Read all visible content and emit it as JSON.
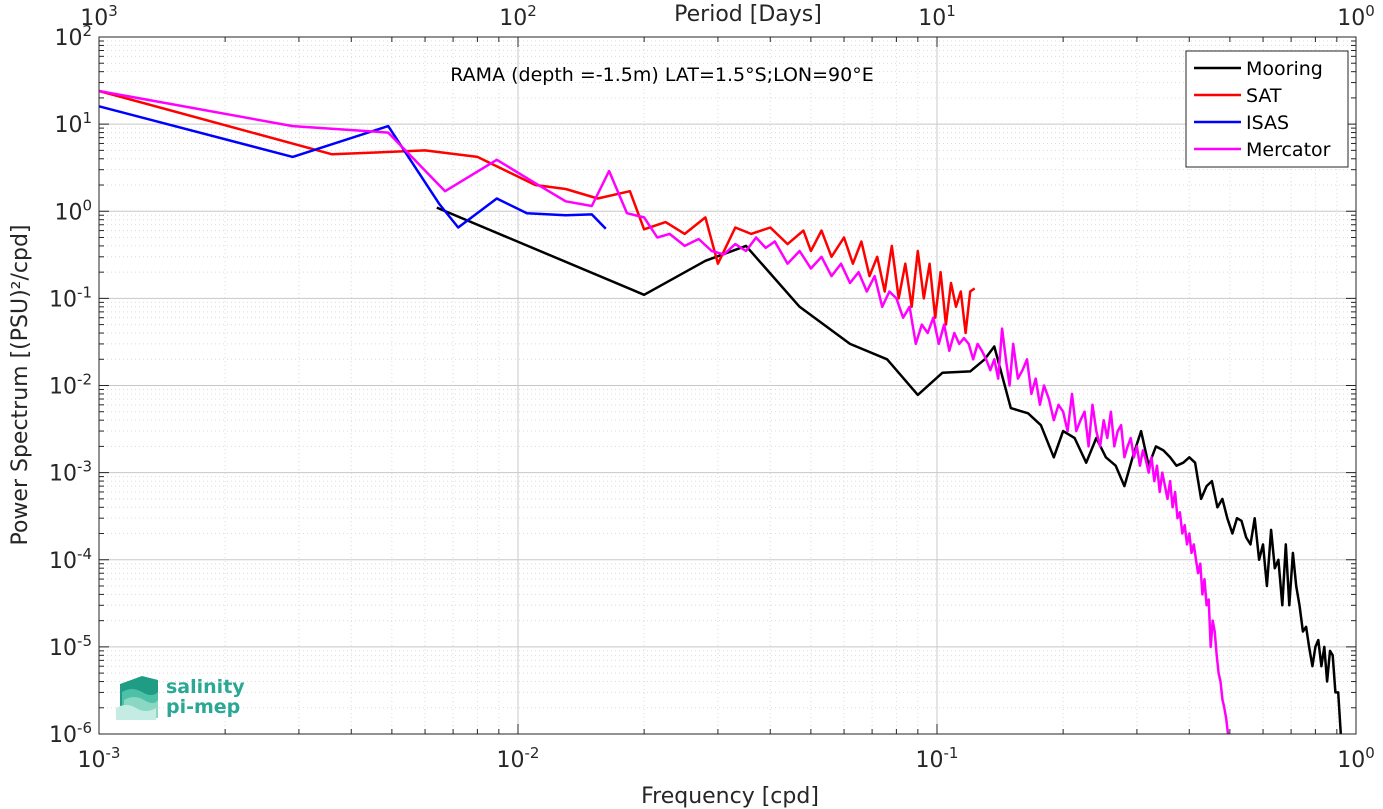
{
  "chart_data": {
    "type": "line",
    "annotation": "RAMA (depth =-1.5m) LAT=1.5°S;LON=90°E",
    "xlabel": "Frequency [cpd]",
    "ylabel": "Power Spectrum [(PSU)²/cpd]",
    "top_xlabel": "Period [Days]",
    "x_scale": "log",
    "y_scale": "log",
    "xlim": [
      0.001,
      1
    ],
    "ylim": [
      1e-06,
      100
    ],
    "grid": true,
    "minor_grid": true,
    "legend_position": "top-right",
    "x_ticks": [
      0.001,
      0.01,
      0.1,
      1
    ],
    "x_tick_labels": [
      {
        "base": "10",
        "exp": "-3"
      },
      {
        "base": "10",
        "exp": "-2"
      },
      {
        "base": "10",
        "exp": "-1"
      },
      {
        "base": "10",
        "exp": "0"
      }
    ],
    "top_ticks": [
      1000,
      100,
      10,
      1
    ],
    "top_tick_labels": [
      {
        "base": "10",
        "exp": "3"
      },
      {
        "base": "10",
        "exp": "2"
      },
      {
        "base": "10",
        "exp": "1"
      },
      {
        "base": "10",
        "exp": "0"
      }
    ],
    "y_ticks": [
      1e-06,
      1e-05,
      0.0001,
      0.001,
      0.01,
      0.1,
      1,
      10,
      100
    ],
    "y_tick_labels": [
      {
        "base": "10",
        "exp": "-6"
      },
      {
        "base": "10",
        "exp": "-5"
      },
      {
        "base": "10",
        "exp": "-4"
      },
      {
        "base": "10",
        "exp": "-3"
      },
      {
        "base": "10",
        "exp": "-2"
      },
      {
        "base": "10",
        "exp": "-1"
      },
      {
        "base": "10",
        "exp": "0"
      },
      {
        "base": "10",
        "exp": "1"
      },
      {
        "base": "10",
        "exp": "2"
      }
    ],
    "series": [
      {
        "name": "Mooring",
        "color": "#000000",
        "x": [
          0.0064,
          0.02,
          0.028,
          0.035,
          0.047,
          0.062,
          0.076,
          0.09,
          0.103,
          0.12,
          0.13,
          0.137,
          0.15,
          0.165,
          0.177,
          0.19,
          0.2,
          0.213,
          0.227,
          0.24,
          0.253,
          0.267,
          0.28,
          0.293,
          0.307,
          0.32,
          0.333,
          0.347,
          0.36,
          0.373,
          0.387,
          0.4,
          0.413,
          0.427,
          0.44,
          0.453,
          0.467,
          0.48,
          0.493,
          0.507,
          0.52,
          0.533,
          0.547,
          0.56,
          0.573,
          0.587,
          0.6,
          0.613,
          0.627,
          0.64,
          0.653,
          0.667,
          0.68,
          0.693,
          0.707,
          0.72,
          0.733,
          0.747,
          0.76,
          0.773,
          0.787,
          0.8,
          0.813,
          0.827,
          0.84,
          0.853,
          0.867,
          0.88,
          0.893,
          0.907,
          0.92
        ],
        "y": [
          1.1,
          0.11,
          0.27,
          0.4,
          0.08,
          0.03,
          0.02,
          0.0078,
          0.014,
          0.0145,
          0.02,
          0.028,
          0.0055,
          0.0048,
          0.0035,
          0.0015,
          0.003,
          0.0025,
          0.0013,
          0.0025,
          0.0015,
          0.0012,
          0.0007,
          0.0015,
          0.003,
          0.0012,
          0.002,
          0.0018,
          0.0015,
          0.0012,
          0.0013,
          0.0015,
          0.0013,
          0.0005,
          0.0007,
          0.0008,
          0.0004,
          0.0005,
          0.0003,
          0.0002,
          0.0003,
          0.00028,
          0.00018,
          0.00015,
          0.0003,
          0.0001,
          0.00015,
          5e-05,
          0.00022,
          8e-05,
          0.0001,
          3e-05,
          0.00015,
          3e-05,
          0.00012,
          5e-05,
          3e-05,
          1.5e-05,
          1.7e-05,
          1e-05,
          6e-06,
          1e-05,
          1.2e-05,
          6e-06,
          1e-05,
          4e-06,
          9e-06,
          8e-06,
          3e-06,
          3e-06,
          1e-06
        ]
      },
      {
        "name": "SAT",
        "color": "#ff0000",
        "x": [
          0.001,
          0.0036,
          0.006,
          0.008,
          0.011,
          0.013,
          0.0155,
          0.0185,
          0.02,
          0.0225,
          0.025,
          0.028,
          0.03,
          0.033,
          0.036,
          0.04,
          0.044,
          0.048,
          0.05,
          0.053,
          0.056,
          0.06,
          0.063,
          0.066,
          0.069,
          0.072,
          0.075,
          0.078,
          0.081,
          0.084,
          0.087,
          0.09,
          0.093,
          0.096,
          0.099,
          0.102,
          0.105,
          0.108,
          0.111,
          0.114,
          0.117,
          0.12,
          0.123
        ],
        "y": [
          24,
          4.5,
          5.0,
          4.2,
          2.0,
          1.8,
          1.4,
          1.7,
          0.62,
          0.75,
          0.55,
          0.85,
          0.25,
          0.65,
          0.55,
          0.65,
          0.42,
          0.6,
          0.35,
          0.6,
          0.3,
          0.5,
          0.25,
          0.45,
          0.18,
          0.3,
          0.12,
          0.4,
          0.1,
          0.25,
          0.08,
          0.35,
          0.1,
          0.25,
          0.06,
          0.2,
          0.05,
          0.15,
          0.08,
          0.12,
          0.04,
          0.12,
          0.13
        ]
      },
      {
        "name": "ISAS",
        "color": "#0000ff",
        "x": [
          0.001,
          0.0029,
          0.0049,
          0.0065,
          0.0072,
          0.0089,
          0.0105,
          0.013,
          0.015,
          0.0162
        ],
        "y": [
          16,
          4.2,
          9.5,
          1.2,
          0.65,
          1.4,
          0.95,
          0.9,
          0.92,
          0.63
        ]
      },
      {
        "name": "Mercator",
        "color": "#ff00ff",
        "x": [
          0.001,
          0.0029,
          0.0049,
          0.0067,
          0.0089,
          0.011,
          0.013,
          0.015,
          0.0165,
          0.0182,
          0.02,
          0.0215,
          0.023,
          0.025,
          0.027,
          0.029,
          0.031,
          0.033,
          0.035,
          0.037,
          0.039,
          0.041,
          0.044,
          0.047,
          0.05,
          0.053,
          0.056,
          0.059,
          0.062,
          0.065,
          0.068,
          0.071,
          0.074,
          0.077,
          0.08,
          0.083,
          0.086,
          0.089,
          0.092,
          0.095,
          0.098,
          0.101,
          0.104,
          0.107,
          0.11,
          0.113,
          0.116,
          0.119,
          0.122,
          0.125,
          0.128,
          0.131,
          0.134,
          0.137,
          0.14,
          0.143,
          0.146,
          0.149,
          0.152,
          0.156,
          0.16,
          0.164,
          0.168,
          0.172,
          0.176,
          0.18,
          0.185,
          0.19,
          0.195,
          0.2,
          0.205,
          0.21,
          0.215,
          0.22,
          0.225,
          0.23,
          0.235,
          0.24,
          0.245,
          0.25,
          0.255,
          0.26,
          0.265,
          0.27,
          0.275,
          0.28,
          0.285,
          0.29,
          0.295,
          0.3,
          0.305,
          0.31,
          0.315,
          0.32,
          0.325,
          0.33,
          0.335,
          0.34,
          0.345,
          0.35,
          0.355,
          0.36,
          0.365,
          0.37,
          0.375,
          0.38,
          0.385,
          0.39,
          0.395,
          0.4,
          0.405,
          0.41,
          0.415,
          0.42,
          0.425,
          0.43,
          0.435,
          0.44,
          0.445,
          0.45,
          0.455,
          0.46,
          0.465,
          0.47,
          0.475,
          0.48,
          0.485,
          0.49,
          0.495
        ],
        "y": [
          24,
          9.5,
          8.0,
          1.7,
          3.9,
          2.1,
          1.3,
          1.15,
          2.9,
          0.95,
          0.85,
          0.5,
          0.55,
          0.4,
          0.48,
          0.35,
          0.32,
          0.42,
          0.35,
          0.5,
          0.38,
          0.45,
          0.25,
          0.35,
          0.22,
          0.3,
          0.18,
          0.25,
          0.15,
          0.2,
          0.12,
          0.18,
          0.08,
          0.12,
          0.1,
          0.06,
          0.08,
          0.03,
          0.05,
          0.04,
          0.06,
          0.03,
          0.05,
          0.025,
          0.04,
          0.03,
          0.035,
          0.03,
          0.02,
          0.03,
          0.025,
          0.02,
          0.015,
          0.02,
          0.012,
          0.045,
          0.02,
          0.01,
          0.03,
          0.012,
          0.015,
          0.02,
          0.008,
          0.012,
          0.006,
          0.01,
          0.007,
          0.004,
          0.006,
          0.005,
          0.003,
          0.008,
          0.003,
          0.004,
          0.005,
          0.002,
          0.006,
          0.003,
          0.002,
          0.004,
          0.0025,
          0.005,
          0.002,
          0.003,
          0.0035,
          0.0015,
          0.002,
          0.0025,
          0.0015,
          0.002,
          0.0012,
          0.0018,
          0.0014,
          0.001,
          0.0015,
          0.0008,
          0.0012,
          0.0006,
          0.001,
          0.0007,
          0.0005,
          0.0008,
          0.0004,
          0.0006,
          0.0003,
          0.00035,
          0.0002,
          0.00025,
          0.00015,
          0.0002,
          0.00012,
          0.00015,
          0.0001,
          7e-05,
          9e-05,
          4e-05,
          6e-05,
          3e-05,
          3.5e-05,
          1e-05,
          2e-05,
          1.5e-05,
          8e-06,
          5e-06,
          4e-06,
          2.5e-06,
          2e-06,
          1.5e-06,
          1e-06
        ]
      }
    ]
  },
  "logo": {
    "line1": "salinity",
    "line2": "pi-mep"
  }
}
